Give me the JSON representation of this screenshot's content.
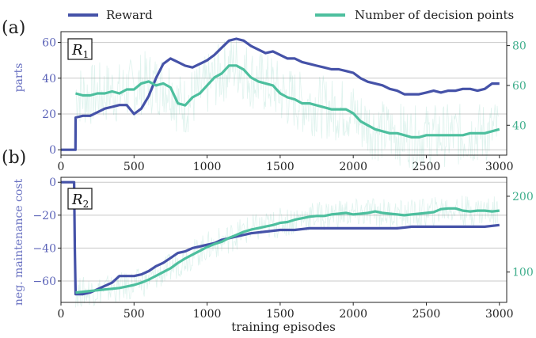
{
  "legend": {
    "entries": [
      {
        "label": "Reward",
        "color": "#4552a8"
      },
      {
        "label": "Number of decision points",
        "color": "#4dbf9e"
      }
    ]
  },
  "panels": [
    {
      "letter": "(a)",
      "tag_base": "R",
      "tag_sub": "1"
    },
    {
      "letter": "(b)",
      "tag_base": "R",
      "tag_sub": "2"
    }
  ],
  "colors": {
    "reward": "#4552a8",
    "decision": "#4dbf9e",
    "grid": "#c8c8c8"
  },
  "chart_data": [
    {
      "type": "line",
      "panel": "(a)",
      "ylabel": "parts",
      "x_ticks": [
        "0",
        "500",
        "1000",
        "1500",
        "2000",
        "2500",
        "3000"
      ],
      "y_ticks_left": [
        "0",
        "20",
        "40",
        "60"
      ],
      "y_ticks_right": [
        "40",
        "60",
        "80"
      ],
      "xlim": [
        0,
        3050
      ],
      "ylim_left": [
        -3,
        66
      ],
      "ylim_right": [
        25,
        87
      ],
      "grid": true,
      "series": [
        {
          "name": "Reward",
          "axis": "left",
          "x": [
            0,
            99,
            100,
            150,
            200,
            300,
            350,
            400,
            450,
            500,
            550,
            600,
            650,
            700,
            750,
            800,
            850,
            900,
            950,
            1000,
            1050,
            1100,
            1150,
            1200,
            1250,
            1300,
            1350,
            1400,
            1450,
            1500,
            1550,
            1600,
            1650,
            1700,
            1750,
            1800,
            1850,
            1900,
            1950,
            2000,
            2050,
            2100,
            2150,
            2200,
            2250,
            2300,
            2350,
            2400,
            2450,
            2500,
            2550,
            2600,
            2650,
            2700,
            2750,
            2800,
            2850,
            2900,
            2950,
            3000
          ],
          "values": [
            0,
            0,
            18,
            19,
            19,
            23,
            24,
            25,
            25,
            20,
            23,
            30,
            40,
            48,
            51,
            49,
            47,
            46,
            48,
            50,
            53,
            57,
            61,
            62,
            61,
            58,
            56,
            54,
            55,
            53,
            51,
            51,
            49,
            48,
            47,
            46,
            45,
            45,
            44,
            43,
            40,
            38,
            37,
            36,
            34,
            33,
            31,
            31,
            31,
            32,
            33,
            32,
            33,
            33,
            34,
            34,
            33,
            34,
            37,
            37
          ]
        },
        {
          "name": "Number of decision points",
          "axis": "right",
          "x": [
            100,
            150,
            200,
            250,
            300,
            350,
            400,
            450,
            500,
            550,
            600,
            650,
            700,
            750,
            800,
            850,
            900,
            950,
            1000,
            1050,
            1100,
            1150,
            1200,
            1250,
            1300,
            1350,
            1400,
            1450,
            1500,
            1550,
            1600,
            1650,
            1700,
            1750,
            1800,
            1850,
            1900,
            1950,
            2000,
            2050,
            2100,
            2150,
            2200,
            2250,
            2300,
            2350,
            2400,
            2450,
            2500,
            2550,
            2600,
            2650,
            2700,
            2750,
            2800,
            2850,
            2900,
            2950,
            3000
          ],
          "values": [
            56,
            55,
            55,
            56,
            56,
            57,
            56,
            58,
            58,
            61,
            62,
            60,
            61,
            59,
            51,
            50,
            54,
            56,
            60,
            64,
            66,
            70,
            70,
            68,
            64,
            62,
            61,
            60,
            56,
            54,
            53,
            51,
            51,
            50,
            49,
            48,
            48,
            48,
            46,
            42,
            40,
            38,
            37,
            36,
            36,
            35,
            34,
            34,
            35,
            35,
            35,
            35,
            35,
            35,
            36,
            36,
            36,
            37,
            38
          ]
        }
      ]
    },
    {
      "type": "line",
      "panel": "(b)",
      "ylabel": "neg. maintenance cost",
      "xlabel": "training episodes",
      "x_ticks": [
        "0",
        "500",
        "1000",
        "1500",
        "2000",
        "2500",
        "3000"
      ],
      "y_ticks_left": [
        "0",
        "−20",
        "−40",
        "−60"
      ],
      "y_ticks_right": [
        "100",
        "200"
      ],
      "xlim": [
        0,
        3050
      ],
      "ylim_left": [
        -73,
        3
      ],
      "ylim_right": [
        60,
        225
      ],
      "grid": true,
      "series": [
        {
          "name": "Reward",
          "axis": "left",
          "x": [
            0,
            90,
            95,
            100,
            150,
            200,
            250,
            300,
            350,
            400,
            450,
            500,
            550,
            600,
            650,
            700,
            750,
            800,
            850,
            900,
            950,
            1000,
            1050,
            1100,
            1150,
            1200,
            1300,
            1400,
            1500,
            1600,
            1700,
            1800,
            1900,
            2000,
            2100,
            2200,
            2300,
            2400,
            2500,
            2600,
            2700,
            2800,
            2900,
            3000
          ],
          "values": [
            0,
            0,
            -40,
            -68,
            -68,
            -67,
            -65,
            -63,
            -61,
            -57,
            -57,
            -57,
            -56,
            -54,
            -51,
            -49,
            -46,
            -43,
            -42,
            -40,
            -39,
            -38,
            -37,
            -35,
            -34,
            -33,
            -31,
            -30,
            -29,
            -29,
            -28,
            -28,
            -28,
            -28,
            -28,
            -28,
            -28,
            -27,
            -27,
            -27,
            -27,
            -27,
            -27,
            -26
          ]
        },
        {
          "name": "Number of decision points",
          "axis": "right",
          "x": [
            100,
            150,
            200,
            250,
            300,
            350,
            400,
            450,
            500,
            550,
            600,
            650,
            700,
            750,
            800,
            850,
            900,
            950,
            1000,
            1050,
            1100,
            1150,
            1200,
            1250,
            1300,
            1350,
            1400,
            1450,
            1500,
            1550,
            1600,
            1650,
            1700,
            1750,
            1800,
            1850,
            1900,
            1950,
            2000,
            2050,
            2100,
            2150,
            2200,
            2250,
            2300,
            2350,
            2400,
            2450,
            2500,
            2550,
            2600,
            2650,
            2700,
            2750,
            2800,
            2850,
            2900,
            2950,
            3000
          ],
          "values": [
            73,
            74,
            75,
            76,
            77,
            78,
            79,
            81,
            83,
            86,
            90,
            95,
            100,
            105,
            112,
            118,
            123,
            128,
            133,
            137,
            140,
            145,
            149,
            153,
            156,
            158,
            160,
            162,
            165,
            166,
            169,
            171,
            173,
            174,
            174,
            176,
            177,
            178,
            176,
            177,
            178,
            180,
            178,
            177,
            176,
            175,
            176,
            177,
            178,
            179,
            183,
            184,
            184,
            181,
            180,
            181,
            181,
            180,
            181
          ]
        }
      ]
    }
  ]
}
